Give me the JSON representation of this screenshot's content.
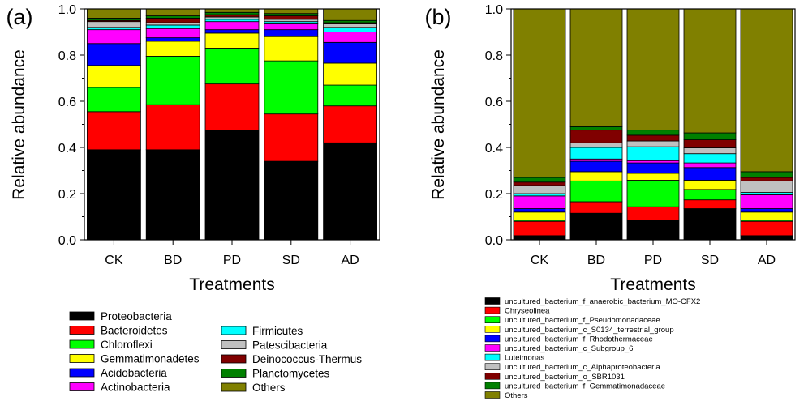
{
  "chart_data": [
    {
      "type": "bar",
      "stacked": true,
      "panel_label": "(a)",
      "xlabel": "Treatments",
      "ylabel": "Relative abundance",
      "ylim": [
        0,
        1.0
      ],
      "yticks": [
        "0.0",
        "0.2",
        "0.4",
        "0.6",
        "0.8",
        "1.0"
      ],
      "categories": [
        "CK",
        "BD",
        "PD",
        "SD",
        "AD"
      ],
      "series": [
        {
          "name": "Proteobacteria",
          "color": "#000000",
          "values": [
            0.39,
            0.39,
            0.475,
            0.34,
            0.42
          ]
        },
        {
          "name": "Bacteroidetes",
          "color": "#ff0000",
          "values": [
            0.165,
            0.195,
            0.2,
            0.205,
            0.16
          ]
        },
        {
          "name": "Chloroflexi",
          "color": "#00ff00",
          "values": [
            0.105,
            0.21,
            0.155,
            0.23,
            0.09
          ]
        },
        {
          "name": "Gemmatimonadetes",
          "color": "#ffff00",
          "values": [
            0.095,
            0.065,
            0.065,
            0.105,
            0.095
          ]
        },
        {
          "name": "Acidobacteria",
          "color": "#0000ff",
          "values": [
            0.095,
            0.015,
            0.015,
            0.03,
            0.09
          ]
        },
        {
          "name": "Actinobacteria",
          "color": "#ff00ff",
          "values": [
            0.06,
            0.04,
            0.035,
            0.025,
            0.045
          ]
        },
        {
          "name": "Firmicutes",
          "color": "#00ffff",
          "values": [
            0.01,
            0.015,
            0.01,
            0.01,
            0.02
          ]
        },
        {
          "name": "Patescibacteria",
          "color": "#c0c0c0",
          "values": [
            0.025,
            0.01,
            0.01,
            0.01,
            0.015
          ]
        },
        {
          "name": "Deinococcus-Thermus",
          "color": "#800000",
          "values": [
            0.005,
            0.02,
            0.01,
            0.015,
            0.005
          ]
        },
        {
          "name": "Planctomycetes",
          "color": "#008000",
          "values": [
            0.01,
            0.01,
            0.01,
            0.01,
            0.01
          ]
        },
        {
          "name": "Others",
          "color": "#808000",
          "values": [
            0.04,
            0.03,
            0.025,
            0.02,
            0.05
          ]
        }
      ]
    },
    {
      "type": "bar",
      "stacked": true,
      "panel_label": "(b)",
      "xlabel": "Treatments",
      "ylabel": "Relative abundance",
      "ylim": [
        0,
        1.0
      ],
      "yticks": [
        "0.0",
        "0.2",
        "0.4",
        "0.6",
        "0.8",
        "1.0"
      ],
      "categories": [
        "CK",
        "BD",
        "PD",
        "SD",
        "AD"
      ],
      "series": [
        {
          "name": "uncultured_bacterium_f_anaerobic_bacterium_MO-CFX2",
          "color": "#000000",
          "values": [
            0.018,
            0.115,
            0.085,
            0.135,
            0.018
          ]
        },
        {
          "name": "Chryseolinea",
          "color": "#ff0000",
          "values": [
            0.062,
            0.05,
            0.058,
            0.038,
            0.062
          ]
        },
        {
          "name": "uncultured_bacterium_f_Pseudomonadaceae",
          "color": "#00ff00",
          "values": [
            0.005,
            0.09,
            0.115,
            0.045,
            0.005
          ]
        },
        {
          "name": "uncultured_bacterium_c_S0134_terrestrial_group",
          "color": "#ffff00",
          "values": [
            0.035,
            0.04,
            0.03,
            0.04,
            0.035
          ]
        },
        {
          "name": "uncultured_bacterium_f_Rhodothermaceae",
          "color": "#0000ff",
          "values": [
            0.015,
            0.045,
            0.045,
            0.055,
            0.015
          ]
        },
        {
          "name": "uncultured_bacterium_c_Subgroup_6",
          "color": "#ff00ff",
          "values": [
            0.055,
            0.01,
            0.01,
            0.02,
            0.06
          ]
        },
        {
          "name": "Luteimonas",
          "color": "#00ffff",
          "values": [
            0.01,
            0.05,
            0.06,
            0.04,
            0.01
          ]
        },
        {
          "name": "uncultured_bacterium_c_Alphaproteobacteria",
          "color": "#c0c0c0",
          "values": [
            0.035,
            0.02,
            0.025,
            0.025,
            0.05
          ]
        },
        {
          "name": "uncultured_bacterium_o_SBR1031",
          "color": "#800000",
          "values": [
            0.015,
            0.055,
            0.025,
            0.035,
            0.015
          ]
        },
        {
          "name": "uncultured_bacterium_f_Gemmatimonadaceae",
          "color": "#008000",
          "values": [
            0.02,
            0.015,
            0.022,
            0.03,
            0.025
          ]
        },
        {
          "name": "Others",
          "color": "#808000",
          "values": [
            0.73,
            0.51,
            0.525,
            0.537,
            0.715
          ]
        }
      ]
    }
  ]
}
